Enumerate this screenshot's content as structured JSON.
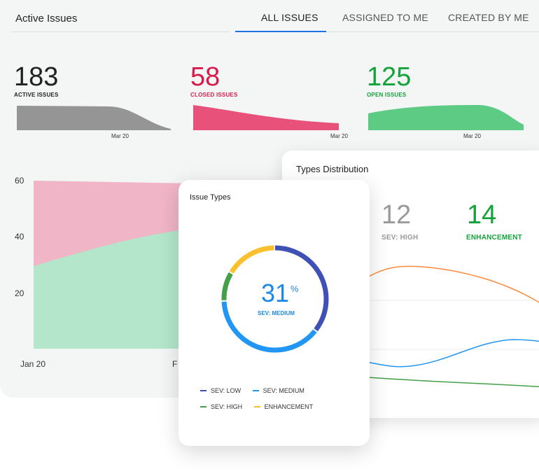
{
  "dashboard": {
    "title": "Active Issues",
    "tabs": [
      {
        "label": "ALL ISSUES",
        "active": true
      },
      {
        "label": "ASSIGNED TO ME",
        "active": false
      },
      {
        "label": "CREATED BY ME",
        "active": false
      }
    ],
    "accent_color": "#1a73e8",
    "stats": [
      {
        "value": "183",
        "label": "ACTIVE ISSUES",
        "color": "#222222",
        "fill": "#959595",
        "tick": "Mar 20"
      },
      {
        "value": "58",
        "label": "CLOSED ISSUES",
        "color": "#d81b4a",
        "fill": "#e8527a",
        "tick": "Mar 20"
      },
      {
        "value": "125",
        "label": "OPEN ISSUES",
        "color": "#13a33a",
        "fill": "#5ecb85",
        "tick": "Mar 20"
      }
    ],
    "main_chart": {
      "y_ticks": [
        "60",
        "40",
        "20"
      ],
      "x_ticks": [
        "Jan 20",
        "F"
      ]
    }
  },
  "types_distribution": {
    "title": "Types Distribution",
    "stats": [
      {
        "value": "12",
        "label": "SEV: HIGH",
        "color": "#9a9a9a"
      },
      {
        "value": "14",
        "label": "ENHANCEMENT",
        "color": "#13a33a"
      }
    ]
  },
  "issue_types": {
    "title": "Issue Types",
    "center_value": "31",
    "center_unit": "%",
    "center_label": "SEV: MEDIUM",
    "center_color": "#1e88e5",
    "legend": [
      {
        "label": "SEV: LOW",
        "color": "#3f51b5"
      },
      {
        "label": "SEV: MEDIUM",
        "color": "#2196f3"
      },
      {
        "label": "SEV: HIGH",
        "color": "#43a047"
      },
      {
        "label": "ENHANCEMENT",
        "color": "#fbc02d"
      }
    ]
  }
}
